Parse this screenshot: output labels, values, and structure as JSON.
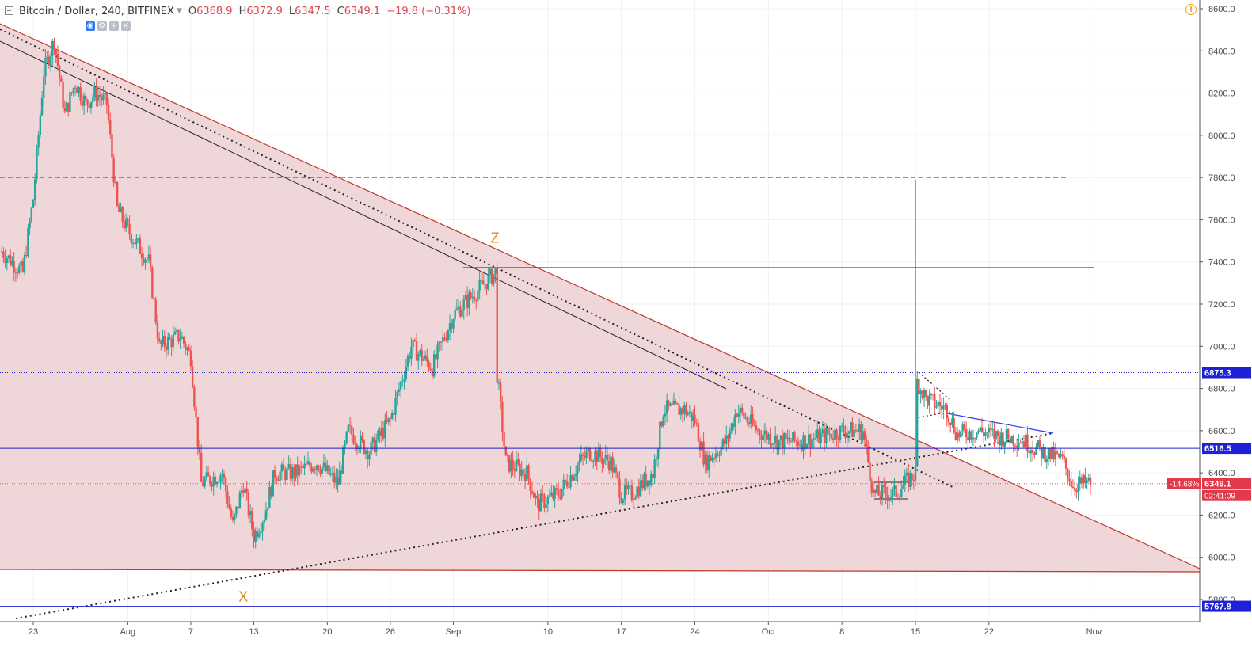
{
  "header": {
    "symbol": "Bitcoin / Dollar, 240, BITFINEX",
    "open_label": "O",
    "open": "6368.9",
    "high_label": "H",
    "high": "6372.9",
    "low_label": "L",
    "low": "6347.5",
    "close_label": "C",
    "close": "6349.1",
    "change": "−19.8 (−0.31%)",
    "alert_icon": "!"
  },
  "colors": {
    "up": "#26a69a",
    "down": "#ef5350",
    "wedge_fill": "#ebcfd2",
    "wedge_edge": "#c0392b",
    "blue_line": "#1f1fd0",
    "dashed_blue": "#3b4fd8",
    "label_blue": "#1e22d6",
    "label_red": "#e23a4a"
  },
  "chart_data": {
    "type": "candlestick",
    "title": "Bitcoin / Dollar, 240, BITFINEX",
    "ylim": [
      5700,
      8650
    ],
    "y_ticks": [
      5800,
      6000,
      6200,
      6400,
      6600,
      6800,
      7000,
      7200,
      7400,
      7600,
      7800,
      8000,
      8200,
      8400,
      8600
    ],
    "x_range": [
      "2018-07-20",
      "2018-11-15"
    ],
    "x_ticks": [
      {
        "date": "2018-07-23",
        "label": "23"
      },
      {
        "date": "2018-08-01",
        "label": "Aug"
      },
      {
        "date": "2018-08-07",
        "label": "7"
      },
      {
        "date": "2018-08-13",
        "label": "13"
      },
      {
        "date": "2018-08-20",
        "label": "20"
      },
      {
        "date": "2018-08-26",
        "label": "26"
      },
      {
        "date": "2018-09-01",
        "label": "Sep"
      },
      {
        "date": "2018-09-10",
        "label": "10"
      },
      {
        "date": "2018-09-17",
        "label": "17"
      },
      {
        "date": "2018-09-24",
        "label": "24"
      },
      {
        "date": "2018-10-01",
        "label": "Oct"
      },
      {
        "date": "2018-10-08",
        "label": "8"
      },
      {
        "date": "2018-10-15",
        "label": "15"
      },
      {
        "date": "2018-10-22",
        "label": "22"
      },
      {
        "date": "2018-11-01",
        "label": "Nov"
      }
    ],
    "price_path": [
      [
        "2018-07-20",
        7450
      ],
      [
        "2018-07-22",
        7350
      ],
      [
        "2018-07-23",
        7700
      ],
      [
        "2018-07-24",
        8300
      ],
      [
        "2018-07-25",
        8450
      ],
      [
        "2018-07-26",
        8100
      ],
      [
        "2018-07-27",
        8250
      ],
      [
        "2018-07-28",
        8150
      ],
      [
        "2018-07-29",
        8200
      ],
      [
        "2018-07-30",
        8150
      ],
      [
        "2018-07-31",
        7650
      ],
      [
        "2018-08-01",
        7550
      ],
      [
        "2018-08-03",
        7400
      ],
      [
        "2018-08-04",
        7000
      ],
      [
        "2018-08-06",
        7050
      ],
      [
        "2018-08-07",
        6950
      ],
      [
        "2018-08-08",
        6350
      ],
      [
        "2018-08-10",
        6400
      ],
      [
        "2018-08-11",
        6150
      ],
      [
        "2018-08-12",
        6350
      ],
      [
        "2018-08-13",
        6100
      ],
      [
        "2018-08-14",
        6200
      ],
      [
        "2018-08-15",
        6400
      ],
      [
        "2018-08-17",
        6400
      ],
      [
        "2018-08-19",
        6450
      ],
      [
        "2018-08-21",
        6350
      ],
      [
        "2018-08-22",
        6600
      ],
      [
        "2018-08-24",
        6500
      ],
      [
        "2018-08-26",
        6650
      ],
      [
        "2018-08-28",
        7000
      ],
      [
        "2018-08-30",
        6900
      ],
      [
        "2018-09-01",
        7150
      ],
      [
        "2018-09-03",
        7250
      ],
      [
        "2018-09-05",
        7350
      ],
      [
        "2018-09-05",
        6950
      ],
      [
        "2018-09-06",
        6450
      ],
      [
        "2018-09-08",
        6400
      ],
      [
        "2018-09-09",
        6250
      ],
      [
        "2018-09-11",
        6300
      ],
      [
        "2018-09-13",
        6450
      ],
      [
        "2018-09-14",
        6500
      ],
      [
        "2018-09-16",
        6450
      ],
      [
        "2018-09-17",
        6300
      ],
      [
        "2018-09-18",
        6300
      ],
      [
        "2018-09-20",
        6400
      ],
      [
        "2018-09-21",
        6700
      ],
      [
        "2018-09-23",
        6700
      ],
      [
        "2018-09-24",
        6650
      ],
      [
        "2018-09-25",
        6450
      ],
      [
        "2018-09-27",
        6550
      ],
      [
        "2018-09-28",
        6700
      ],
      [
        "2018-09-30",
        6600
      ],
      [
        "2018-10-02",
        6550
      ],
      [
        "2018-10-04",
        6550
      ],
      [
        "2018-10-06",
        6570
      ],
      [
        "2018-10-08",
        6600
      ],
      [
        "2018-10-10",
        6600
      ],
      [
        "2018-10-11",
        6300
      ],
      [
        "2018-10-13",
        6300
      ],
      [
        "2018-10-15",
        6400
      ],
      [
        "2018-10-15",
        6850
      ],
      [
        "2018-10-16",
        6750
      ],
      [
        "2018-10-18",
        6700
      ],
      [
        "2018-10-19",
        6580
      ],
      [
        "2018-10-21",
        6600
      ],
      [
        "2018-10-23",
        6570
      ],
      [
        "2018-10-25",
        6560
      ],
      [
        "2018-10-27",
        6500
      ],
      [
        "2018-10-29",
        6460
      ],
      [
        "2018-10-30",
        6340
      ],
      [
        "2018-10-31",
        6349.1
      ]
    ],
    "horizontal_levels": [
      {
        "price": 7800,
        "style": "dashed",
        "label": ""
      },
      {
        "price": 6875.3,
        "style": "dotted",
        "label": "6875.3"
      },
      {
        "price": 6516.5,
        "style": "solid",
        "label": "6516.5"
      },
      {
        "price": 5767.8,
        "style": "solid",
        "label": "5767.8"
      },
      {
        "price": 6349.1,
        "style": "dotted-red",
        "label": "6349.1"
      }
    ],
    "price_labels": {
      "pct": "-14.68%",
      "last": "6349.1",
      "countdown": "02:41:09"
    },
    "annotations": [
      {
        "text": "Z",
        "date": "2018-09-05",
        "price": 7490
      },
      {
        "text": "X",
        "date": "2018-08-12",
        "price": 5790
      }
    ]
  }
}
